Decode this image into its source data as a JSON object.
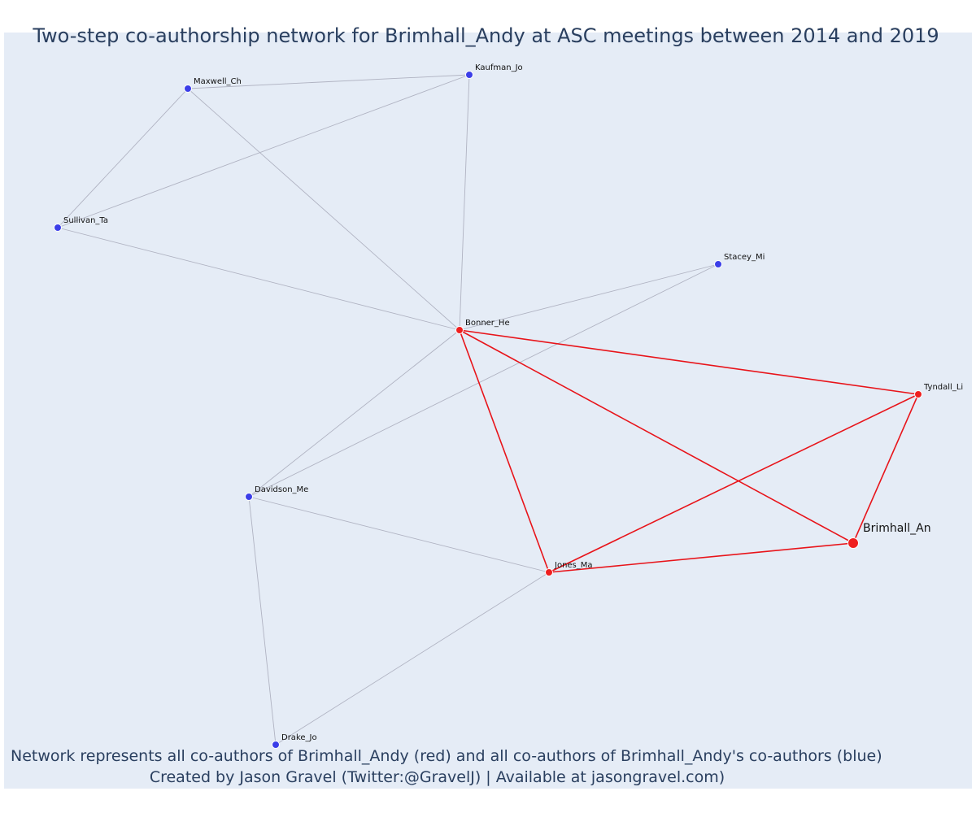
{
  "title": "Two-step co-authorship network for Brimhall_Andy at ASC meetings between 2014 and 2019",
  "captions": {
    "line1": "Network represents all co-authors of Brimhall_Andy (red) and all co-authors of Brimhall_Andy's co-authors (blue)",
    "line2": "Created by Jason Gravel (Twitter:@GravelJ) | Available at jasongravel.com)"
  },
  "colors": {
    "background": "#e5ecf6",
    "coauthor_node": "#ef1f1f",
    "second_step_node": "#3b3ee8",
    "ego_edge": "#e8141a",
    "other_edge": "#b0b3c2",
    "text": "#2a3f5f"
  },
  "nodes": [
    {
      "id": "brimhall",
      "label": "Brimhall_An",
      "group": "ego"
    },
    {
      "id": "bonner",
      "label": "Bonner_He",
      "group": "coauthor"
    },
    {
      "id": "tyndall",
      "label": "Tyndall_Li",
      "group": "coauthor"
    },
    {
      "id": "jones",
      "label": "Jones_Ma",
      "group": "coauthor"
    },
    {
      "id": "maxwell",
      "label": "Maxwell_Ch",
      "group": "second"
    },
    {
      "id": "kaufman",
      "label": "Kaufman_Jo",
      "group": "second"
    },
    {
      "id": "sullivan",
      "label": "Sullivan_Ta",
      "group": "second"
    },
    {
      "id": "stacey",
      "label": "Stacey_Mi",
      "group": "second"
    },
    {
      "id": "davidson",
      "label": "Davidson_Me",
      "group": "second"
    },
    {
      "id": "drake",
      "label": "Drake_Jo",
      "group": "second"
    }
  ],
  "edges": [
    {
      "source": "maxwell",
      "target": "kaufman",
      "kind": "other"
    },
    {
      "source": "maxwell",
      "target": "sullivan",
      "kind": "other"
    },
    {
      "source": "maxwell",
      "target": "bonner",
      "kind": "other"
    },
    {
      "source": "kaufman",
      "target": "sullivan",
      "kind": "other"
    },
    {
      "source": "kaufman",
      "target": "bonner",
      "kind": "other"
    },
    {
      "source": "sullivan",
      "target": "bonner",
      "kind": "other"
    },
    {
      "source": "stacey",
      "target": "bonner",
      "kind": "other"
    },
    {
      "source": "stacey",
      "target": "davidson",
      "kind": "other"
    },
    {
      "source": "bonner",
      "target": "davidson",
      "kind": "other"
    },
    {
      "source": "davidson",
      "target": "jones",
      "kind": "other"
    },
    {
      "source": "davidson",
      "target": "drake",
      "kind": "other"
    },
    {
      "source": "drake",
      "target": "jones",
      "kind": "other"
    },
    {
      "source": "bonner",
      "target": "tyndall",
      "kind": "ego"
    },
    {
      "source": "bonner",
      "target": "jones",
      "kind": "ego"
    },
    {
      "source": "bonner",
      "target": "brimhall",
      "kind": "ego"
    },
    {
      "source": "tyndall",
      "target": "jones",
      "kind": "ego"
    },
    {
      "source": "tyndall",
      "target": "brimhall",
      "kind": "ego"
    },
    {
      "source": "jones",
      "target": "brimhall",
      "kind": "ego"
    }
  ]
}
